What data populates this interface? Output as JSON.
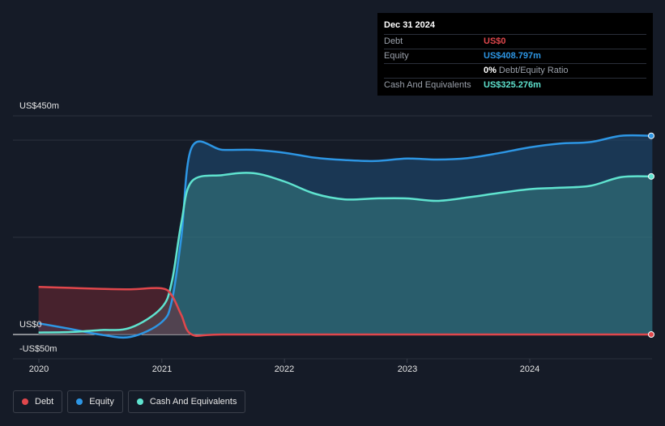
{
  "chart_data": {
    "type": "area",
    "x_ticks": [
      "2020",
      "2021",
      "2022",
      "2023",
      "2024"
    ],
    "y_ticks": [
      "US$450m",
      "US$0",
      "-US$50m"
    ],
    "ylim": [
      -50,
      450
    ],
    "grid": true,
    "legend_position": "bottom-left",
    "series": [
      {
        "name": "Debt",
        "color": "#e0474c",
        "points": [
          [
            "2019-12-31",
            98
          ],
          [
            "2020-03-31",
            96
          ],
          [
            "2020-06-30",
            94
          ],
          [
            "2020-09-30",
            93
          ],
          [
            "2020-12-31",
            95
          ],
          [
            "2021-01-31",
            80
          ],
          [
            "2021-02-28",
            40
          ],
          [
            "2021-03-31",
            0
          ],
          [
            "2021-06-30",
            0
          ],
          [
            "2022-06-30",
            0
          ],
          [
            "2023-06-30",
            0
          ],
          [
            "2024-06-30",
            0
          ],
          [
            "2024-12-31",
            0
          ]
        ]
      },
      {
        "name": "Equity",
        "color": "#2d96e4",
        "points": [
          [
            "2019-12-31",
            23
          ],
          [
            "2020-03-31",
            12
          ],
          [
            "2020-06-30",
            0
          ],
          [
            "2020-09-30",
            -5
          ],
          [
            "2020-12-31",
            25
          ],
          [
            "2021-01-31",
            70
          ],
          [
            "2021-02-28",
            200
          ],
          [
            "2021-03-31",
            385
          ],
          [
            "2021-06-30",
            380
          ],
          [
            "2021-09-30",
            380
          ],
          [
            "2021-12-31",
            374
          ],
          [
            "2022-03-31",
            364
          ],
          [
            "2022-06-30",
            359
          ],
          [
            "2022-09-30",
            357
          ],
          [
            "2022-12-31",
            362
          ],
          [
            "2023-03-31",
            360
          ],
          [
            "2023-06-30",
            363
          ],
          [
            "2023-09-30",
            373
          ],
          [
            "2023-12-31",
            385
          ],
          [
            "2024-03-31",
            393
          ],
          [
            "2024-06-30",
            396
          ],
          [
            "2024-09-30",
            409
          ],
          [
            "2024-12-31",
            408.797
          ]
        ]
      },
      {
        "name": "Cash And Equivalents",
        "color": "#5fe3cf",
        "points": [
          [
            "2019-12-31",
            4
          ],
          [
            "2020-03-31",
            5
          ],
          [
            "2020-06-30",
            9
          ],
          [
            "2020-09-30",
            14
          ],
          [
            "2020-12-31",
            55
          ],
          [
            "2021-01-31",
            110
          ],
          [
            "2021-02-28",
            230
          ],
          [
            "2021-03-31",
            315
          ],
          [
            "2021-06-30",
            328
          ],
          [
            "2021-09-30",
            332
          ],
          [
            "2021-12-31",
            315
          ],
          [
            "2022-03-31",
            290
          ],
          [
            "2022-06-30",
            278
          ],
          [
            "2022-09-30",
            280
          ],
          [
            "2022-12-31",
            280
          ],
          [
            "2023-03-31",
            275
          ],
          [
            "2023-06-30",
            282
          ],
          [
            "2023-09-30",
            291
          ],
          [
            "2023-12-31",
            299
          ],
          [
            "2024-03-31",
            302
          ],
          [
            "2024-06-30",
            306
          ],
          [
            "2024-09-30",
            324
          ],
          [
            "2024-12-31",
            325.276
          ]
        ]
      }
    ]
  },
  "tooltip": {
    "date": "Dec 31 2024",
    "rows": [
      {
        "label": "Debt",
        "value": "US$0",
        "color": "#e0474c"
      },
      {
        "label": "Equity",
        "value": "US$408.797m",
        "color": "#2d96e4"
      },
      {
        "label": "",
        "value": "0%",
        "sub": "Debt/Equity Ratio",
        "color": "#ffffff"
      },
      {
        "label": "Cash And Equivalents",
        "value": "US$325.276m",
        "color": "#5fe3cf"
      }
    ]
  },
  "legend": [
    {
      "label": "Debt",
      "color": "#e0474c"
    },
    {
      "label": "Equity",
      "color": "#2d96e4"
    },
    {
      "label": "Cash And Equivalents",
      "color": "#5fe3cf"
    }
  ]
}
